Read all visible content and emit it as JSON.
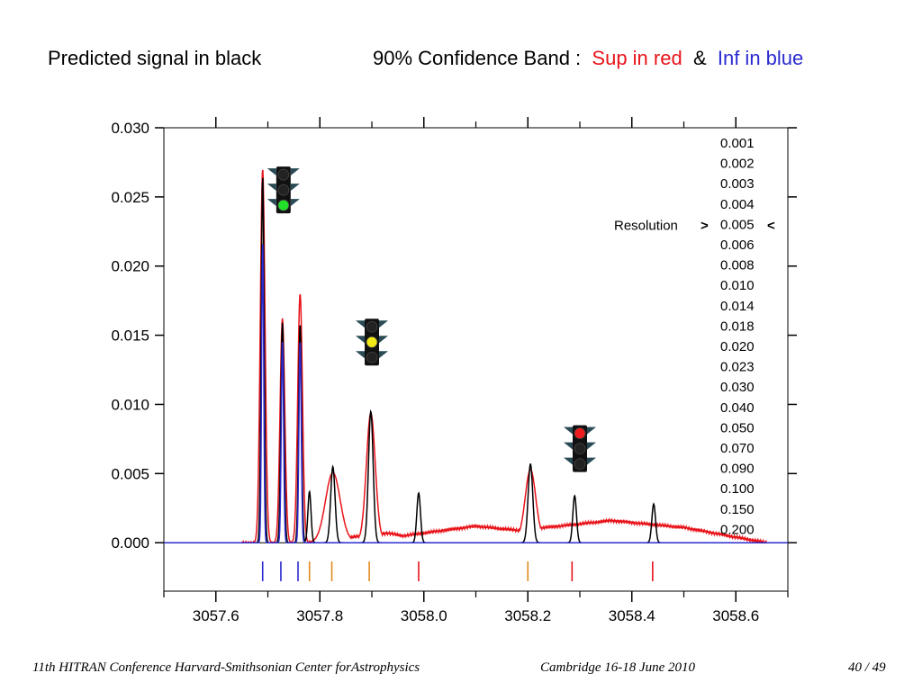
{
  "header": {
    "left": "Predicted signal in black",
    "right_prefix": "90% Confidence Band  :",
    "sup": "Sup in red",
    "amp": "&",
    "inf": "Inf in blue"
  },
  "footer": {
    "left": "11th HITRAN Conference  Harvard-Smithsonian Center forAstrophysics",
    "middle": "Cambridge 16-18 June 2010",
    "right": "40 / 49"
  },
  "colors": {
    "predicted": "#000000",
    "sup": "#e8141b",
    "inf": "#2b2bd0",
    "orange": "#e08a1e",
    "light_green": "#22e02a",
    "light_yellow": "#f2ea16",
    "light_red": "#ee1c1c"
  },
  "resolution": {
    "label": "Resolution",
    "open": ">",
    "close": "<",
    "selected": "0.005",
    "values": [
      "0.001",
      "0.002",
      "0.003",
      "0.004",
      "0.005",
      "0.006",
      "0.008",
      "0.010",
      "0.014",
      "0.018",
      "0.020",
      "0.023",
      "0.030",
      "0.040",
      "0.050",
      "0.070",
      "0.090",
      "0.100",
      "0.150",
      "0.200"
    ]
  },
  "traffic_lights": [
    {
      "name": "green",
      "icon": "traffic-light-green-icon",
      "x": 3057.73,
      "y": 0.0255
    },
    {
      "name": "yellow",
      "icon": "traffic-light-yellow-icon",
      "x": 3057.9,
      "y": 0.0145
    },
    {
      "name": "red",
      "icon": "traffic-light-red-icon",
      "x": 3058.3,
      "y": 0.0068
    }
  ],
  "chart_data": {
    "type": "line",
    "title": "",
    "xlabel": "",
    "ylabel": "",
    "xlim": [
      3057.5,
      3058.7
    ],
    "ylim": [
      -0.0035,
      0.03
    ],
    "x_ticks": [
      3057.6,
      3057.8,
      3058.0,
      3058.2,
      3058.4,
      3058.6
    ],
    "x_tick_labels": [
      "3057.6",
      "3057.8",
      "3058.0",
      "3058.2",
      "3058.4",
      "3058.6"
    ],
    "y_ticks": [
      0.0,
      0.005,
      0.01,
      0.015,
      0.02,
      0.025,
      0.03
    ],
    "y_tick_labels": [
      "0.000",
      "0.005",
      "0.010",
      "0.015",
      "0.020",
      "0.025",
      "0.030"
    ],
    "grid": false,
    "series": [
      {
        "role": "predicted",
        "color": "#000000",
        "peaks": [
          [
            3057.69,
            0.0265,
            0.0028
          ],
          [
            3057.728,
            0.0159,
            0.003
          ],
          [
            3057.762,
            0.0158,
            0.0028
          ],
          [
            3057.78,
            0.0037,
            0.003
          ],
          [
            3057.825,
            0.0055,
            0.0042
          ],
          [
            3057.898,
            0.0095,
            0.0045
          ],
          [
            3057.99,
            0.0036,
            0.0035
          ],
          [
            3058.205,
            0.0057,
            0.0045
          ],
          [
            3058.29,
            0.0034,
            0.0035
          ],
          [
            3058.442,
            0.0028,
            0.0035
          ]
        ],
        "baseline": 0.0
      },
      {
        "role": "sup",
        "color": "#e8141b",
        "peaks": [
          [
            3057.69,
            0.027,
            0.0045
          ],
          [
            3057.728,
            0.0162,
            0.0045
          ],
          [
            3057.762,
            0.018,
            0.0045
          ],
          [
            3057.825,
            0.005,
            0.014
          ],
          [
            3057.898,
            0.0092,
            0.0085
          ],
          [
            3058.205,
            0.005,
            0.01
          ]
        ],
        "band": [
          [
            3057.65,
            0.0
          ],
          [
            3057.77,
            0.0
          ],
          [
            3057.93,
            0.0007
          ],
          [
            3057.96,
            0.0005
          ],
          [
            3058.0,
            0.0007
          ],
          [
            3058.1,
            0.0012
          ],
          [
            3058.18,
            0.0009
          ],
          [
            3058.26,
            0.0012
          ],
          [
            3058.36,
            0.0016
          ],
          [
            3058.5,
            0.0011
          ],
          [
            3058.6,
            0.0004
          ],
          [
            3058.66,
            0.0
          ]
        ]
      },
      {
        "role": "inf",
        "color": "#2b2bd0",
        "peaks": [
          [
            3057.69,
            0.0218,
            0.002
          ],
          [
            3057.728,
            0.0145,
            0.0022
          ],
          [
            3057.762,
            0.0146,
            0.0022
          ]
        ],
        "baseline": 0.0
      }
    ],
    "line_positions": [
      {
        "x": 3057.69,
        "color": "blue"
      },
      {
        "x": 3057.725,
        "color": "blue"
      },
      {
        "x": 3057.758,
        "color": "blue"
      },
      {
        "x": 3057.78,
        "color": "orange"
      },
      {
        "x": 3057.823,
        "color": "orange"
      },
      {
        "x": 3057.895,
        "color": "orange"
      },
      {
        "x": 3057.99,
        "color": "red"
      },
      {
        "x": 3058.2,
        "color": "orange"
      },
      {
        "x": 3058.285,
        "color": "red"
      },
      {
        "x": 3058.44,
        "color": "red"
      }
    ]
  }
}
